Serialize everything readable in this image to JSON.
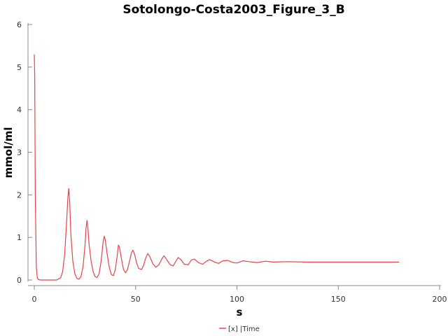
{
  "chart_data": {
    "type": "line",
    "title": "Sotolongo-Costa2003_Figure_3_B",
    "xlabel": "s",
    "ylabel": "mmol/ml",
    "xlim": [
      0,
      200
    ],
    "ylim": [
      0,
      6
    ],
    "x_ticks": [
      0,
      50,
      100,
      150,
      200
    ],
    "y_ticks": [
      0,
      1,
      2,
      3,
      4,
      5,
      6
    ],
    "grid": false,
    "legend_position": "bottom-center",
    "series": [
      {
        "name": "[x] |Time",
        "color": "#e8424b",
        "x": [
          0,
          0.2,
          0.5,
          1,
          1.5,
          2,
          3,
          5,
          8,
          11,
          13,
          14,
          15,
          16,
          16.5,
          17,
          17.5,
          18,
          19,
          20,
          21,
          22,
          23,
          24,
          25,
          25.5,
          26,
          26.5,
          27,
          28,
          29,
          30,
          31,
          32,
          33,
          34,
          34.5,
          35,
          36,
          37,
          38,
          39,
          40,
          41,
          41.5,
          42,
          43,
          44,
          45,
          46,
          47,
          48,
          48.7,
          49.5,
          50.5,
          51.5,
          53,
          54,
          55,
          56,
          57,
          58.5,
          60,
          61.5,
          63,
          64,
          65,
          67,
          68.5,
          70,
          71,
          72.5,
          74,
          76,
          77.5,
          79,
          81,
          83,
          85,
          86.5,
          89,
          91,
          93,
          95.5,
          98,
          100,
          103,
          106,
          110,
          114,
          118,
          125,
          135,
          145,
          155,
          165,
          175,
          180
        ],
        "values": [
          5.3,
          4.8,
          2.0,
          0.3,
          0.05,
          0.01,
          0.0,
          0.0,
          0.0,
          0.0,
          0.05,
          0.2,
          0.6,
          1.4,
          1.9,
          2.15,
          1.8,
          1.1,
          0.45,
          0.15,
          0.04,
          0.02,
          0.08,
          0.3,
          0.8,
          1.2,
          1.4,
          1.2,
          0.85,
          0.45,
          0.2,
          0.08,
          0.06,
          0.15,
          0.45,
          0.9,
          1.03,
          0.95,
          0.6,
          0.3,
          0.13,
          0.1,
          0.25,
          0.6,
          0.82,
          0.78,
          0.5,
          0.25,
          0.17,
          0.25,
          0.45,
          0.65,
          0.7,
          0.6,
          0.4,
          0.27,
          0.25,
          0.35,
          0.52,
          0.62,
          0.55,
          0.38,
          0.3,
          0.36,
          0.5,
          0.57,
          0.5,
          0.36,
          0.33,
          0.45,
          0.53,
          0.47,
          0.37,
          0.36,
          0.47,
          0.49,
          0.41,
          0.37,
          0.44,
          0.48,
          0.42,
          0.39,
          0.45,
          0.46,
          0.41,
          0.4,
          0.45,
          0.43,
          0.41,
          0.44,
          0.42,
          0.43,
          0.42,
          0.42,
          0.42,
          0.42,
          0.42,
          0.42
        ]
      }
    ]
  }
}
